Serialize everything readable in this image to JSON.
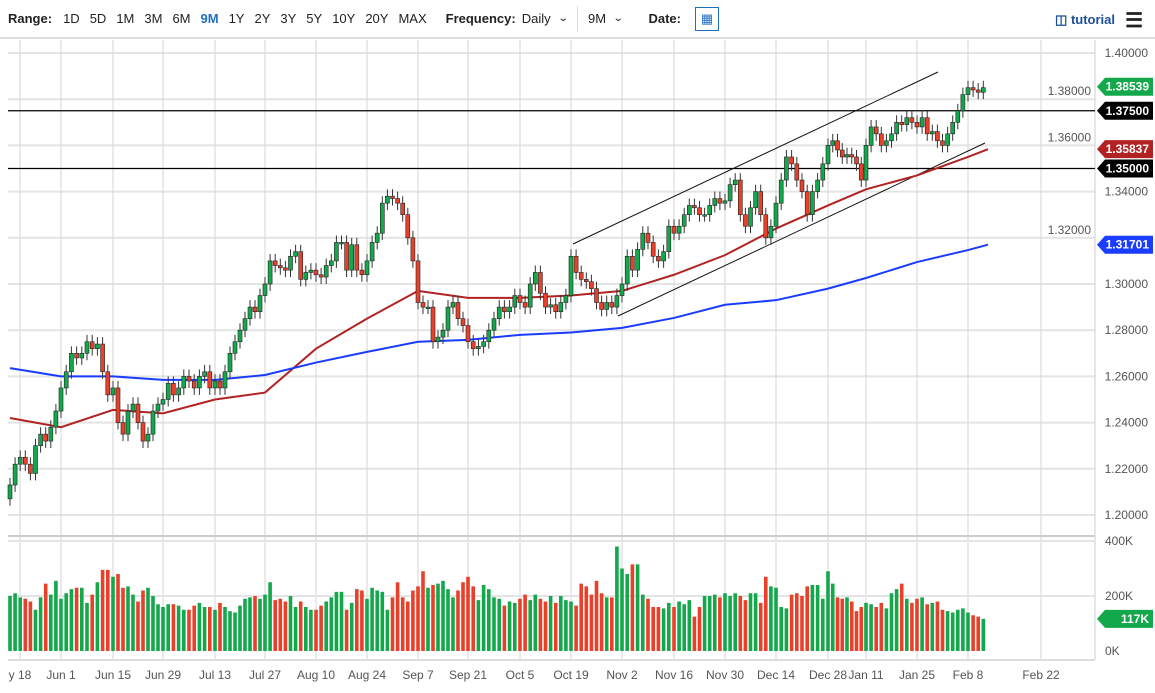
{
  "toolbar": {
    "range_label": "Range:",
    "ranges": [
      "1D",
      "5D",
      "1M",
      "3M",
      "6M",
      "9M",
      "1Y",
      "2Y",
      "3Y",
      "5Y",
      "10Y",
      "20Y",
      "MAX"
    ],
    "active_range": "9M",
    "frequency_label": "Frequency:",
    "frequency_value": "Daily",
    "period_value": "9M",
    "date_label": "Date:",
    "tutorial_label": "tutorial"
  },
  "chart_data": {
    "type": "candlestick",
    "ylim": [
      1.19,
      1.405
    ],
    "y_ticks": [
      "1.40000",
      "1.38000",
      "1.36000",
      "1.34000",
      "1.32000",
      "1.30000",
      "1.28000",
      "1.26000",
      "1.24000",
      "1.22000",
      "1.20000"
    ],
    "x_ticks": [
      "y 18",
      "Jun 1",
      "Jun 15",
      "Jun 29",
      "Jul 13",
      "Jul 27",
      "Aug 10",
      "Aug 24",
      "Sep 7",
      "Sep 21",
      "Oct 5",
      "Oct 19",
      "Nov 2",
      "Nov 16",
      "Nov 30",
      "Dec 14",
      "Dec 28",
      "Jan 11",
      "Jan 25",
      "Feb 8",
      "Feb 22"
    ],
    "grid": true,
    "close": [
      1.213,
      1.222,
      1.225,
      1.222,
      1.218,
      1.23,
      1.235,
      1.232,
      1.238,
      1.245,
      1.255,
      1.262,
      1.27,
      1.268,
      1.27,
      1.275,
      1.272,
      1.274,
      1.262,
      1.252,
      1.255,
      1.24,
      1.235,
      1.245,
      1.248,
      1.24,
      1.232,
      1.235,
      1.245,
      1.248,
      1.25,
      1.257,
      1.252,
      1.255,
      1.26,
      1.258,
      1.255,
      1.26,
      1.262,
      1.255,
      1.258,
      1.255,
      1.262,
      1.27,
      1.275,
      1.28,
      1.285,
      1.29,
      1.288,
      1.295,
      1.3,
      1.31,
      1.308,
      1.307,
      1.306,
      1.312,
      1.314,
      1.302,
      1.305,
      1.306,
      1.304,
      1.303,
      1.308,
      1.31,
      1.318,
      1.318,
      1.306,
      1.317,
      1.306,
      1.304,
      1.31,
      1.318,
      1.322,
      1.335,
      1.338,
      1.337,
      1.335,
      1.33,
      1.32,
      1.31,
      1.292,
      1.29,
      1.29,
      1.275,
      1.277,
      1.28,
      1.29,
      1.292,
      1.285,
      1.282,
      1.275,
      1.272,
      1.273,
      1.275,
      1.28,
      1.285,
      1.29,
      1.288,
      1.29,
      1.295,
      1.292,
      1.29,
      1.3,
      1.305,
      1.296,
      1.29,
      1.291,
      1.288,
      1.292,
      1.295,
      1.312,
      1.305,
      1.302,
      1.301,
      1.298,
      1.292,
      1.289,
      1.292,
      1.29,
      1.295,
      1.3,
      1.312,
      1.306,
      1.315,
      1.322,
      1.318,
      1.312,
      1.31,
      1.314,
      1.325,
      1.322,
      1.325,
      1.33,
      1.334,
      1.333,
      1.33,
      1.33,
      1.334,
      1.337,
      1.335,
      1.336,
      1.343,
      1.345,
      1.33,
      1.325,
      1.333,
      1.34,
      1.33,
      1.32,
      1.325,
      1.335,
      1.345,
      1.355,
      1.352,
      1.345,
      1.34,
      1.33,
      1.34,
      1.345,
      1.352,
      1.36,
      1.362,
      1.358,
      1.355,
      1.356,
      1.355,
      1.352,
      1.345,
      1.36,
      1.368,
      1.365,
      1.36,
      1.362,
      1.365,
      1.37,
      1.369,
      1.372,
      1.37,
      1.368,
      1.372,
      1.365,
      1.366,
      1.362,
      1.36,
      1.365,
      1.37,
      1.375,
      1.382,
      1.385,
      1.384,
      1.383,
      1.385
    ],
    "volume_k": [
      200,
      210,
      195,
      190,
      180,
      150,
      195,
      245,
      205,
      255,
      190,
      210,
      225,
      230,
      230,
      175,
      205,
      250,
      295,
      295,
      270,
      280,
      230,
      235,
      205,
      180,
      220,
      230,
      200,
      170,
      160,
      170,
      170,
      165,
      150,
      150,
      165,
      175,
      160,
      160,
      150,
      175,
      160,
      145,
      140,
      165,
      190,
      195,
      200,
      190,
      205,
      250,
      185,
      190,
      180,
      200,
      160,
      180,
      160,
      150,
      150,
      165,
      180,
      195,
      215,
      215,
      150,
      175,
      225,
      220,
      190,
      230,
      220,
      215,
      150,
      195,
      250,
      195,
      180,
      220,
      235,
      290,
      230,
      240,
      245,
      255,
      225,
      195,
      220,
      250,
      270,
      235,
      185,
      240,
      225,
      195,
      190,
      165,
      180,
      175,
      190,
      205,
      185,
      205,
      190,
      180,
      200,
      175,
      200,
      185,
      180,
      165,
      245,
      235,
      205,
      255,
      210,
      195,
      195,
      380,
      300,
      280,
      315,
      315,
      205,
      190,
      160,
      160,
      155,
      175,
      160,
      180,
      170,
      185,
      125,
      160,
      200,
      200,
      205,
      195,
      210,
      200,
      210,
      200,
      185,
      210,
      210,
      175,
      270,
      235,
      230,
      160,
      155,
      205,
      210,
      200,
      235,
      240,
      240,
      190,
      290,
      245,
      195,
      190,
      195,
      180,
      145,
      160,
      175,
      170,
      160,
      175,
      155,
      210,
      225,
      245,
      190,
      175,
      190,
      195,
      170,
      175,
      180,
      150,
      145,
      140,
      150,
      155,
      140,
      130,
      125,
      117
    ],
    "volume_ticks": [
      "400K",
      "200K",
      "0K"
    ],
    "ma50": {
      "color": "#b22222",
      "values": [
        1.242,
        1.238,
        1.2455,
        1.244,
        1.25,
        1.253,
        1.272,
        1.285,
        1.297,
        1.294,
        1.294,
        1.295,
        1.297,
        1.304,
        1.3125,
        1.324,
        1.334,
        1.341,
        1.347,
        1.355,
        1.35837
      ]
    },
    "ma200": {
      "color": "#1a3cff",
      "values": [
        1.2636,
        1.26,
        1.26,
        1.2585,
        1.2585,
        1.2606,
        1.266,
        1.2706,
        1.275,
        1.2758,
        1.278,
        1.279,
        1.281,
        1.2853,
        1.291,
        1.293,
        1.298,
        1.3026,
        1.3095,
        1.3147,
        1.31701
      ]
    },
    "horizontal_levels": [
      1.375,
      1.35
    ],
    "tags": [
      {
        "text": "1.38539",
        "value": 1.38539,
        "color": "#13a84b"
      },
      {
        "text": "1.37500",
        "value": 1.375,
        "color": "#000000"
      },
      {
        "text": "1.35837",
        "value": 1.35837,
        "color": "#b22222"
      },
      {
        "text": "1.35000",
        "value": 1.35,
        "color": "#000000"
      },
      {
        "text": "1.31701",
        "value": 1.31701,
        "color": "#1a3cff"
      }
    ],
    "volume_tag": {
      "text": "117K",
      "value": 117,
      "color": "#13a84b"
    },
    "up_color": "#13a84b",
    "down_color": "#e8402a"
  }
}
